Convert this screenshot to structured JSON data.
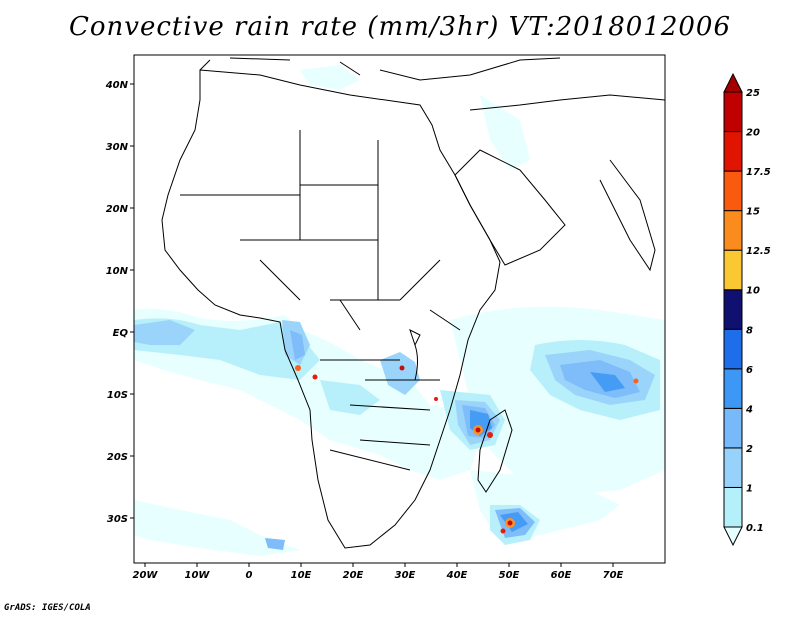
{
  "title": "Convective rain rate (mm/3hr) VT:2018012006",
  "credit": "GrADS: IGES/COLA",
  "axes": {
    "lon_ticks": [
      "20W",
      "10W",
      "0",
      "10E",
      "20E",
      "30E",
      "40E",
      "50E",
      "60E",
      "70E"
    ],
    "lat_ticks": [
      "40N",
      "30N",
      "20N",
      "10N",
      "EQ",
      "10S",
      "20S",
      "30S"
    ]
  },
  "colorbar": {
    "labels": [
      "0.1",
      "1",
      "2",
      "4",
      "6",
      "8",
      "10",
      "12.5",
      "15",
      "17.5",
      "20",
      "25"
    ],
    "colors": [
      "#e6ffff",
      "#b4f0fa",
      "#96d2fa",
      "#78b9fa",
      "#3c97f5",
      "#1e6eeb",
      "#101070",
      "#fac832",
      "#fa8c1e",
      "#fa5a0f",
      "#e11400",
      "#c00000",
      "#a50000"
    ]
  }
}
